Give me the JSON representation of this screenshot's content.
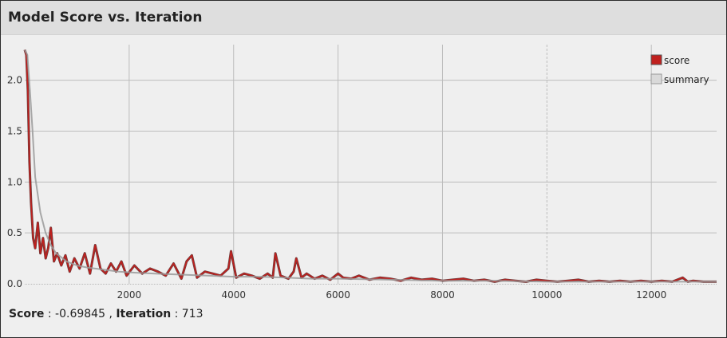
{
  "window": {
    "title": "Model Score vs. Iteration"
  },
  "status": {
    "score_label": "Score",
    "score_value": "-0.69845",
    "iteration_label": "Iteration",
    "iteration_value": "713"
  },
  "colors": {
    "score": "#c0201e",
    "score_dark": "#4a1010",
    "summary": "#9a9a9a",
    "grid": "#bdbdbd",
    "background": "#efefef"
  },
  "chart_data": {
    "type": "line",
    "xlim": [
      0,
      13250
    ],
    "ylim": [
      0,
      2.35
    ],
    "x_ticks": [
      2000,
      4000,
      6000,
      8000,
      10000,
      12000
    ],
    "y_ticks": [
      0.0,
      0.5,
      1.0,
      1.5,
      2.0
    ],
    "x_tick_labels": [
      "2000",
      "4000",
      "6000",
      "8000",
      "10000",
      "12000"
    ],
    "y_tick_labels": [
      "0.0",
      "0.5",
      "1.0",
      "1.5",
      "2.0"
    ],
    "grid": true,
    "legend_position": "top-right",
    "series": [
      {
        "name": "score",
        "x": [
          0,
          30,
          60,
          90,
          120,
          160,
          200,
          250,
          300,
          350,
          400,
          450,
          500,
          560,
          620,
          700,
          780,
          860,
          950,
          1050,
          1150,
          1250,
          1350,
          1450,
          1550,
          1650,
          1750,
          1850,
          1950,
          2100,
          2250,
          2400,
          2550,
          2700,
          2850,
          3000,
          3100,
          3200,
          3300,
          3450,
          3600,
          3750,
          3900,
          3950,
          4050,
          4200,
          4350,
          4500,
          4650,
          4750,
          4800,
          4900,
          5050,
          5150,
          5200,
          5300,
          5400,
          5550,
          5700,
          5850,
          6000,
          6100,
          6250,
          6400,
          6600,
          6800,
          7000,
          7200,
          7400,
          7600,
          7800,
          8000,
          8200,
          8400,
          8600,
          8800,
          9000,
          9200,
          9400,
          9600,
          9800,
          10000,
          10200,
          10400,
          10600,
          10800,
          11000,
          11200,
          11400,
          11600,
          11800,
          12000,
          12200,
          12400,
          12600,
          12700,
          12800,
          13000,
          13250
        ],
        "y": [
          2.3,
          2.25,
          1.9,
          1.2,
          0.8,
          0.45,
          0.35,
          0.6,
          0.3,
          0.45,
          0.25,
          0.35,
          0.55,
          0.22,
          0.3,
          0.18,
          0.28,
          0.12,
          0.25,
          0.15,
          0.3,
          0.1,
          0.38,
          0.15,
          0.1,
          0.2,
          0.12,
          0.22,
          0.08,
          0.18,
          0.1,
          0.15,
          0.12,
          0.08,
          0.2,
          0.05,
          0.22,
          0.28,
          0.06,
          0.12,
          0.1,
          0.08,
          0.15,
          0.32,
          0.06,
          0.1,
          0.08,
          0.05,
          0.1,
          0.06,
          0.3,
          0.08,
          0.05,
          0.12,
          0.25,
          0.06,
          0.1,
          0.05,
          0.08,
          0.04,
          0.1,
          0.06,
          0.05,
          0.08,
          0.04,
          0.06,
          0.05,
          0.03,
          0.06,
          0.04,
          0.05,
          0.03,
          0.04,
          0.05,
          0.03,
          0.04,
          0.02,
          0.04,
          0.03,
          0.02,
          0.04,
          0.03,
          0.02,
          0.03,
          0.04,
          0.02,
          0.03,
          0.02,
          0.03,
          0.02,
          0.03,
          0.02,
          0.03,
          0.02,
          0.06,
          0.02,
          0.03,
          0.02,
          0.02
        ]
      },
      {
        "name": "summary",
        "x": [
          0,
          50,
          100,
          150,
          200,
          300,
          400,
          500,
          600,
          800,
          1000,
          1200,
          1500,
          1800,
          2100,
          2500,
          3000,
          3500,
          4000,
          4500,
          5000,
          5500,
          6000,
          7000,
          8000,
          9000,
          10000,
          11000,
          12000,
          13250
        ],
        "y": [
          2.3,
          2.25,
          1.9,
          1.5,
          1.05,
          0.7,
          0.5,
          0.38,
          0.3,
          0.22,
          0.18,
          0.16,
          0.14,
          0.12,
          0.11,
          0.1,
          0.09,
          0.08,
          0.07,
          0.07,
          0.06,
          0.05,
          0.05,
          0.04,
          0.03,
          0.03,
          0.02,
          0.02,
          0.02,
          0.02
        ]
      }
    ]
  }
}
